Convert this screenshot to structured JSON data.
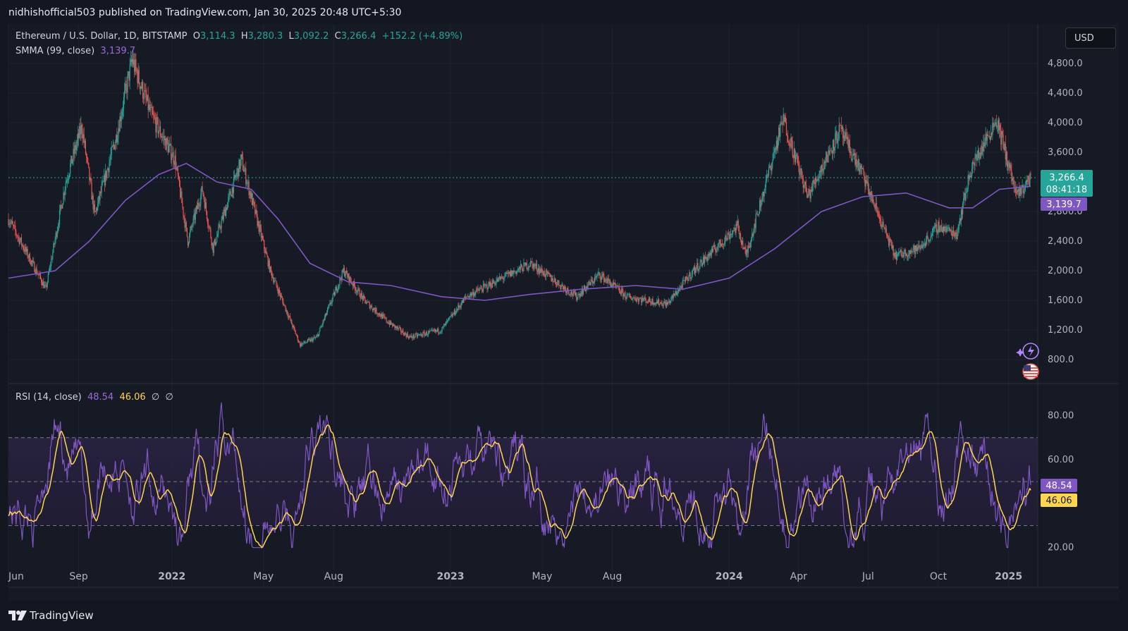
{
  "header": {
    "published_by": "nidhishofficial503 published on TradingView.com, Jan 30, 2025 20:48 UTC+5:30"
  },
  "legend": {
    "symbol": "Ethereum / U.S. Dollar, 1D, BITSTAMP",
    "o_label": "O",
    "o_value": "3,114.3",
    "h_label": "H",
    "h_value": "3,280.3",
    "l_label": "L",
    "l_value": "3,092.2",
    "c_label": "C",
    "c_value": "3,266.4",
    "change": "+152.2 (+4.89%)",
    "smma_label": "SMMA (99, close)",
    "smma_value": "3,139.7",
    "rsi_label": "RSI (14, close)",
    "rsi_value": "48.54",
    "rsi_ma_value": "46.06",
    "rsi_extra1": "∅",
    "rsi_extra2": "∅"
  },
  "currency_button": "USD",
  "price_badge": {
    "price": "3,266.4",
    "countdown": "08:41:18"
  },
  "smma_badge": "3,139.7",
  "rsi_badge": "48.54",
  "rsi_ma_badge": "46.06",
  "footer": {
    "brand": "TradingView"
  },
  "colors": {
    "bg": "#161a25",
    "up": "#26a69a",
    "down": "#ef5350",
    "smma": "#7e57c2",
    "rsi": "#7e57c2",
    "rsi_ma": "#ffd54f"
  },
  "icons": [
    "ai-assistant-icon",
    "us-flag-icon",
    "tradingview-logo-icon"
  ],
  "chart_data": [
    {
      "type": "candlestick",
      "title": "Ethereum / U.S. Dollar, 1D, BITSTAMP",
      "ylim": [
        600,
        5000
      ],
      "y_ticks": [
        "800.0",
        "1,200.0",
        "1,600.0",
        "2,000.0",
        "2,400.0",
        "2,800.0",
        "3,200.0",
        "3,600.0",
        "4,000.0",
        "4,400.0",
        "4,800.0"
      ],
      "x_ticks": [
        "Jun",
        "Sep",
        "2022",
        "May",
        "Aug",
        "2023",
        "May",
        "Aug",
        "2024",
        "Apr",
        "Jul",
        "Oct",
        "2025"
      ],
      "price_anchors": {
        "x": [
          "2021-06-01",
          "2021-07-15",
          "2021-07-20",
          "2021-08-15",
          "2021-09-05",
          "2021-09-22",
          "2021-10-20",
          "2021-11-10",
          "2021-12-05",
          "2022-01-05",
          "2022-01-22",
          "2022-02-10",
          "2022-02-24",
          "2022-04-02",
          "2022-05-10",
          "2022-06-18",
          "2022-07-10",
          "2022-08-14",
          "2022-09-10",
          "2022-10-12",
          "2022-11-09",
          "2022-12-20",
          "2023-01-22",
          "2023-04-16",
          "2023-06-15",
          "2023-07-15",
          "2023-08-20",
          "2023-10-12",
          "2023-11-15",
          "2024-01-12",
          "2024-01-23",
          "2024-03-12",
          "2024-04-13",
          "2024-05-25",
          "2024-06-24",
          "2024-07-05",
          "2024-08-05",
          "2024-09-06",
          "2024-10-01",
          "2024-10-25",
          "2024-11-12",
          "2024-12-16",
          "2025-01-12",
          "2025-01-30"
        ],
        "y": [
          2700,
          1850,
          1750,
          3200,
          3950,
          2750,
          3800,
          4850,
          4100,
          3500,
          2400,
          3100,
          2300,
          3500,
          2000,
          1000,
          1100,
          2000,
          1600,
          1300,
          1100,
          1200,
          1650,
          2100,
          1650,
          1950,
          1650,
          1550,
          2000,
          2600,
          2200,
          4050,
          3000,
          3900,
          3300,
          3000,
          2200,
          2300,
          2600,
          2500,
          3350,
          4050,
          3000,
          3266.4
        ]
      },
      "series": [
        {
          "name": "SMMA (99, close)",
          "last_value": 3139.7,
          "x": [
            "2021-06-01",
            "2021-08-01",
            "2021-09-15",
            "2021-11-01",
            "2021-12-15",
            "2022-01-20",
            "2022-03-01",
            "2022-04-15",
            "2022-05-20",
            "2022-07-01",
            "2022-08-20",
            "2022-10-15",
            "2022-12-20",
            "2023-02-15",
            "2023-04-15",
            "2023-06-20",
            "2023-09-01",
            "2023-11-01",
            "2024-01-01",
            "2024-03-01",
            "2024-05-01",
            "2024-06-24",
            "2024-08-20",
            "2024-10-15",
            "2024-11-15",
            "2024-12-20",
            "2025-01-30"
          ],
          "y": [
            1900,
            2000,
            2400,
            2950,
            3300,
            3450,
            3200,
            3100,
            2700,
            2100,
            1850,
            1800,
            1650,
            1600,
            1680,
            1750,
            1800,
            1750,
            1900,
            2300,
            2800,
            3000,
            3050,
            2850,
            2850,
            3100,
            3139.7
          ]
        }
      ]
    },
    {
      "type": "line",
      "title": "RSI (14, close)",
      "ylim": [
        15,
        90
      ],
      "y_ticks": [
        "20.00",
        "60.00",
        "80.00"
      ],
      "bands": [
        30,
        50,
        70
      ],
      "series": [
        {
          "name": "RSI (14, close)",
          "last_value": 48.54
        },
        {
          "name": "RSI MA",
          "last_value": 46.06
        }
      ]
    }
  ]
}
